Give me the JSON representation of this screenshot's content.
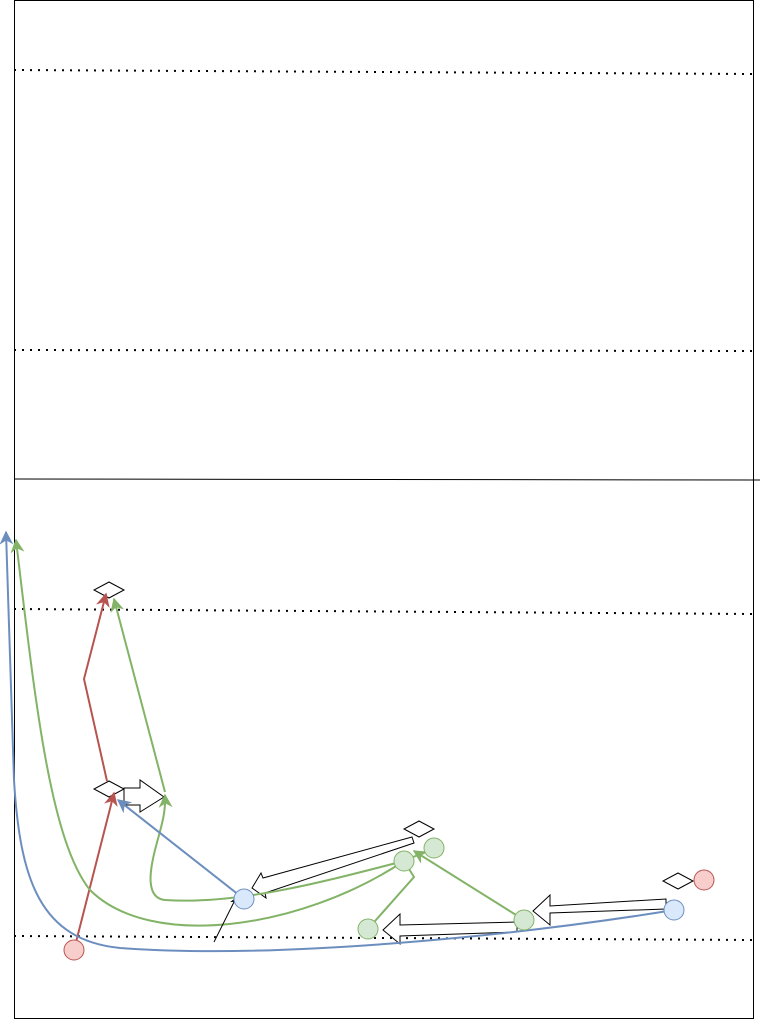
{
  "colors": {
    "frame": "#000000",
    "red": "#b85450",
    "red_fill": "#f8cecc",
    "blue": "#6c8ebf",
    "blue_fill": "#dae8fc",
    "green": "#82b366",
    "green_fill": "#d5e8d4"
  }
}
